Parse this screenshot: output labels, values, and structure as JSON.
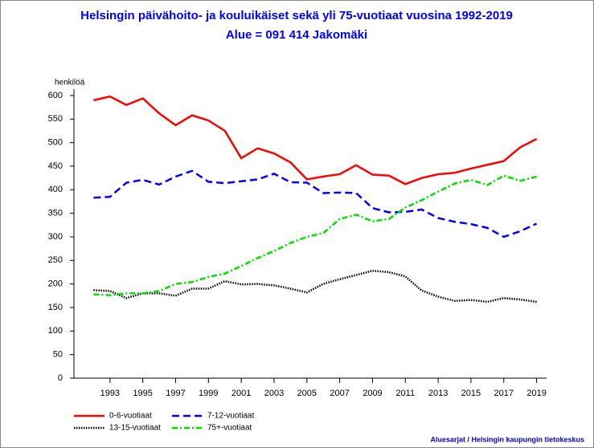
{
  "chart_data": {
    "type": "line",
    "title": "Helsingin päivähoito- ja kouluikäiset sekä yli 75-vuotiaat vuosina 1992-2019",
    "subtitle": "Alue = 091 414 Jakomäki",
    "y_label": "henkilöä",
    "source": "Aluesarjat / Helsingin kaupungin tietokeskus",
    "x": [
      1992,
      1993,
      1994,
      1995,
      1996,
      1997,
      1998,
      1999,
      2000,
      2001,
      2002,
      2003,
      2004,
      2005,
      2006,
      2007,
      2008,
      2009,
      2010,
      2011,
      2012,
      2013,
      2014,
      2015,
      2016,
      2017,
      2018,
      2019
    ],
    "xlim": [
      1991,
      2020
    ],
    "xticks": [
      1993,
      1995,
      1997,
      1999,
      2001,
      2003,
      2005,
      2007,
      2009,
      2011,
      2013,
      2015,
      2017,
      2019
    ],
    "ylim": [
      0,
      600
    ],
    "yticks": [
      0,
      50,
      100,
      150,
      200,
      250,
      300,
      350,
      400,
      450,
      500,
      550,
      600
    ],
    "series": [
      {
        "name": "0-6-vuotiaat",
        "color": "#ff0000",
        "dash": "solid",
        "values": [
          590,
          598,
          580,
          594,
          562,
          537,
          558,
          547,
          525,
          467,
          488,
          477,
          458,
          422,
          428,
          433,
          452,
          432,
          430,
          412,
          425,
          433,
          436,
          445,
          453,
          461,
          490,
          508
        ]
      },
      {
        "name": "13-15-vuotiaat",
        "color": "#000000",
        "dash": "dotted",
        "values": [
          187,
          185,
          170,
          180,
          180,
          175,
          190,
          190,
          206,
          199,
          200,
          197,
          190,
          182,
          200,
          210,
          219,
          228,
          225,
          216,
          186,
          173,
          164,
          166,
          162,
          170,
          167,
          162
        ]
      },
      {
        "name": "7-12-vuotiaat",
        "color": "#0000ff",
        "dash": "dashed",
        "values": [
          383,
          385,
          415,
          421,
          411,
          428,
          440,
          417,
          414,
          418,
          422,
          434,
          416,
          415,
          393,
          394,
          393,
          361,
          352,
          353,
          358,
          340,
          332,
          327,
          319,
          300,
          312,
          328
        ]
      },
      {
        "name": "75+-vuotiaat",
        "color": "#00dd00",
        "dash": "dashdot",
        "values": [
          178,
          176,
          180,
          180,
          185,
          200,
          204,
          215,
          222,
          238,
          255,
          270,
          287,
          300,
          308,
          338,
          347,
          333,
          338,
          362,
          378,
          396,
          413,
          421,
          410,
          430,
          419,
          428
        ]
      }
    ]
  }
}
